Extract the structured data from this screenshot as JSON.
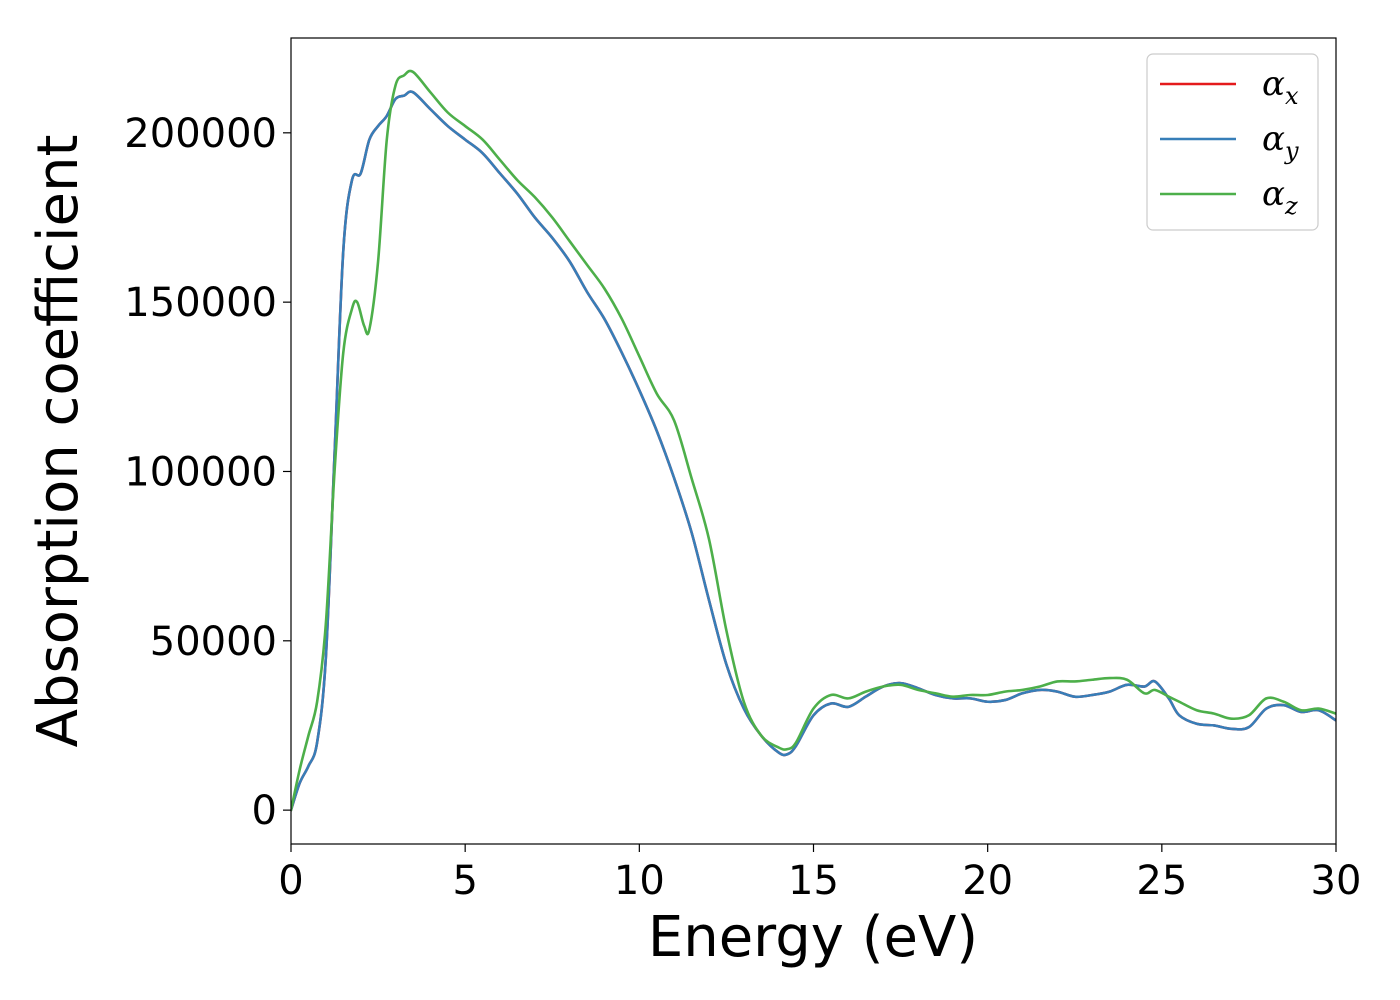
{
  "chart_data": {
    "type": "line",
    "xlabel": "Energy (eV)",
    "ylabel": "Absorption coefficient",
    "xlim": [
      0,
      30
    ],
    "ylim": [
      -10000,
      228000
    ],
    "xticks": [
      0,
      5,
      10,
      15,
      20,
      25,
      30
    ],
    "yticks": [
      0,
      50000,
      100000,
      150000,
      200000
    ],
    "grid": false,
    "legend_position": "top-right",
    "series": [
      {
        "name": "α_x",
        "legend_symbol": "α",
        "legend_subscript": "x",
        "color": "#e41a1c",
        "x": [
          0,
          0.25,
          0.5,
          0.75,
          1.0,
          1.25,
          1.5,
          1.75,
          2.0,
          2.25,
          2.5,
          2.75,
          3.0,
          3.25,
          3.5,
          4.0,
          4.5,
          5.0,
          5.5,
          6.0,
          6.5,
          7.0,
          7.5,
          8.0,
          8.5,
          9.0,
          9.5,
          10.0,
          10.5,
          11.0,
          11.5,
          12.0,
          12.5,
          13.0,
          13.5,
          14.0,
          14.25,
          14.5,
          15.0,
          15.5,
          16.0,
          16.5,
          17.0,
          17.5,
          18.0,
          18.5,
          19.0,
          19.5,
          20.0,
          20.5,
          21.0,
          21.5,
          22.0,
          22.5,
          23.0,
          23.5,
          24.0,
          24.5,
          24.8,
          25.2,
          25.5,
          26.0,
          26.5,
          27.0,
          27.5,
          28.0,
          28.5,
          29.0,
          29.5,
          30.0
        ],
        "y": [
          0,
          8000,
          13000,
          20000,
          45000,
          105000,
          165000,
          186000,
          188000,
          198000,
          202000,
          205000,
          210000,
          211000,
          212000,
          207000,
          202000,
          198000,
          194000,
          188000,
          182000,
          175000,
          169000,
          162000,
          153000,
          145000,
          135000,
          124000,
          112000,
          98000,
          82000,
          62000,
          43000,
          30000,
          22000,
          17000,
          16500,
          19000,
          28000,
          31500,
          30500,
          33500,
          36500,
          37500,
          36000,
          34000,
          33000,
          33000,
          32000,
          32500,
          34500,
          35500,
          35000,
          33500,
          34000,
          35000,
          37000,
          36500,
          38000,
          33000,
          28000,
          25500,
          25000,
          24000,
          24500,
          30000,
          31000,
          29000,
          29500,
          26500
        ]
      },
      {
        "name": "α_y",
        "legend_symbol": "α",
        "legend_subscript": "y",
        "color": "#377eb8",
        "x": [
          0,
          0.25,
          0.5,
          0.75,
          1.0,
          1.25,
          1.5,
          1.75,
          2.0,
          2.25,
          2.5,
          2.75,
          3.0,
          3.25,
          3.5,
          4.0,
          4.5,
          5.0,
          5.5,
          6.0,
          6.5,
          7.0,
          7.5,
          8.0,
          8.5,
          9.0,
          9.5,
          10.0,
          10.5,
          11.0,
          11.5,
          12.0,
          12.5,
          13.0,
          13.5,
          14.0,
          14.25,
          14.5,
          15.0,
          15.5,
          16.0,
          16.5,
          17.0,
          17.5,
          18.0,
          18.5,
          19.0,
          19.5,
          20.0,
          20.5,
          21.0,
          21.5,
          22.0,
          22.5,
          23.0,
          23.5,
          24.0,
          24.5,
          24.8,
          25.2,
          25.5,
          26.0,
          26.5,
          27.0,
          27.5,
          28.0,
          28.5,
          29.0,
          29.5,
          30.0
        ],
        "y": [
          0,
          8000,
          13000,
          20000,
          45000,
          105000,
          165000,
          186000,
          188000,
          198000,
          202000,
          205000,
          210000,
          211000,
          212000,
          207000,
          202000,
          198000,
          194000,
          188000,
          182000,
          175000,
          169000,
          162000,
          153000,
          145000,
          135000,
          124000,
          112000,
          98000,
          82000,
          62000,
          43000,
          30000,
          22000,
          17000,
          16500,
          19000,
          28000,
          31500,
          30500,
          33500,
          36500,
          37500,
          36000,
          34000,
          33000,
          33000,
          32000,
          32500,
          34500,
          35500,
          35000,
          33500,
          34000,
          35000,
          37000,
          36500,
          38000,
          33000,
          28000,
          25500,
          25000,
          24000,
          24500,
          30000,
          31000,
          29000,
          29500,
          26500
        ]
      },
      {
        "name": "α_z",
        "legend_symbol": "α",
        "legend_subscript": "z",
        "color": "#4daf4a",
        "x": [
          0,
          0.25,
          0.5,
          0.75,
          1.0,
          1.25,
          1.5,
          1.75,
          1.9,
          2.1,
          2.25,
          2.5,
          2.75,
          3.0,
          3.25,
          3.5,
          4.0,
          4.5,
          5.0,
          5.5,
          6.0,
          6.5,
          7.0,
          7.5,
          8.0,
          8.5,
          9.0,
          9.5,
          10.0,
          10.5,
          11.0,
          11.5,
          12.0,
          12.5,
          13.0,
          13.5,
          14.0,
          14.25,
          14.5,
          15.0,
          15.5,
          16.0,
          16.5,
          17.0,
          17.5,
          18.0,
          18.5,
          19.0,
          19.5,
          20.0,
          20.5,
          21.0,
          21.5,
          22.0,
          22.5,
          23.0,
          23.5,
          24.0,
          24.5,
          24.8,
          25.2,
          25.5,
          26.0,
          26.5,
          27.0,
          27.5,
          28.0,
          28.5,
          29.0,
          29.5,
          30.0
        ],
        "y": [
          0,
          12000,
          22000,
          32000,
          55000,
          100000,
          135000,
          148000,
          150000,
          143000,
          142000,
          162000,
          198000,
          214000,
          217000,
          218000,
          212000,
          206000,
          202000,
          198000,
          192000,
          186000,
          181000,
          175000,
          168000,
          161000,
          154000,
          145000,
          134000,
          123000,
          115000,
          98000,
          80000,
          53000,
          32000,
          22000,
          18500,
          18000,
          20000,
          30000,
          34000,
          33000,
          35000,
          36500,
          37000,
          35500,
          34500,
          33500,
          34000,
          34000,
          35000,
          35500,
          36500,
          38000,
          38000,
          38500,
          39000,
          38500,
          34500,
          35500,
          33500,
          32000,
          29500,
          28500,
          27000,
          28000,
          33000,
          32000,
          29500,
          30000,
          28500
        ]
      }
    ]
  }
}
